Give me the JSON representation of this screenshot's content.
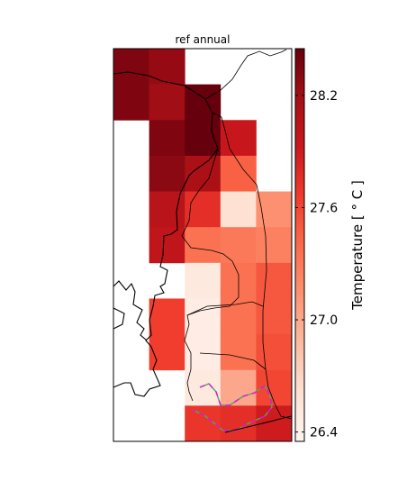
{
  "chart_data": {
    "type": "heatmap",
    "title": "ref annual",
    "colorbar": {
      "label": "Temperature [$^\\circ C$]",
      "label_display": "Temperature [ ° C ]",
      "range": [
        26.35,
        28.45
      ],
      "ticks": [
        26.4,
        27.0,
        27.6,
        28.2
      ],
      "tick_labels": [
        "26.4",
        "27.0",
        "27.6",
        "28.2"
      ],
      "colormap": "Reds"
    },
    "grid": {
      "rows": 11,
      "cols": 5,
      "values": [
        [
          28.35,
          28.25,
          null,
          null,
          null
        ],
        [
          28.35,
          28.2,
          28.45,
          null,
          null
        ],
        [
          null,
          28.35,
          28.45,
          27.95,
          null
        ],
        [
          null,
          28.3,
          28.15,
          27.45,
          null
        ],
        [
          null,
          28.05,
          27.75,
          26.6,
          27.15
        ],
        [
          null,
          28.0,
          27.35,
          27.3,
          27.25
        ],
        [
          null,
          null,
          26.5,
          27.35,
          27.5
        ],
        [
          null,
          27.65,
          26.45,
          27.35,
          27.5
        ],
        [
          null,
          27.65,
          26.45,
          27.35,
          27.55
        ],
        [
          null,
          null,
          26.5,
          27.0,
          27.6
        ],
        [
          null,
          null,
          27.7,
          27.75,
          27.9
        ]
      ]
    }
  }
}
